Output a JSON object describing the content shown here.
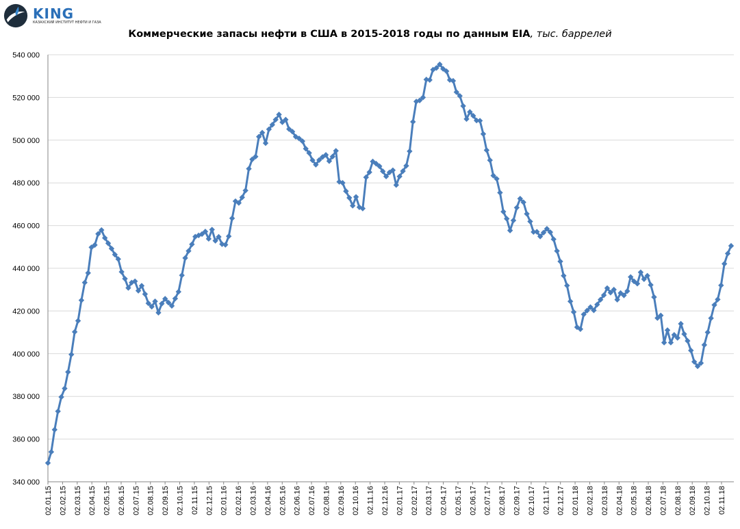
{
  "logo": {
    "name": "KING",
    "subtitle": "КАЗАХСКИЙ ИНСТИТУТ НЕФТИ И ГАЗА",
    "color": "#2a6fb8"
  },
  "chart_data": {
    "type": "line",
    "title": "Коммерческие запасы нефти в США в 2015-2018 годы по данным EIA",
    "title_suffix": ", тыс. баррелей",
    "xlabel": "",
    "ylabel": "",
    "ylim": [
      340000,
      540000
    ],
    "y_ticks": [
      "340 000",
      "360 000",
      "380 000",
      "400 000",
      "420 000",
      "440 000",
      "460 000",
      "480 000",
      "500 000",
      "520 000",
      "540 000"
    ],
    "x_ticks": [
      "02.01.15",
      "02.02.15",
      "02.03.15",
      "02.04.15",
      "02.05.15",
      "02.06.15",
      "02.07.15",
      "02.08.15",
      "02.09.15",
      "02.10.15",
      "02.11.15",
      "02.12.15",
      "02.01.16",
      "02.02.16",
      "02.03.16",
      "02.04.16",
      "02.05.16",
      "02.06.16",
      "02.07.16",
      "02.08.16",
      "02.09.16",
      "02.10.16",
      "02.11.16",
      "02.12.16",
      "02.01.17",
      "02.02.17",
      "02.03.17",
      "02.04.17",
      "02.05.17",
      "02.06.17",
      "02.07.17",
      "02.08.17",
      "02.09.17",
      "02.10.17",
      "02.11.17",
      "02.12.17",
      "02.01.18",
      "02.02.18",
      "02.03.18",
      "02.04.18",
      "02.05.18",
      "02.06.18",
      "02.07.18",
      "02.08.18",
      "02.09.18",
      "02.10.18",
      "02.11.18"
    ],
    "grid": true,
    "series_color": "#4a7ebb",
    "series": [
      {
        "values": [
          348800,
          354000,
          364400,
          373000,
          379700,
          383700,
          391400,
          399600,
          410200,
          415400,
          425000,
          433300,
          437800,
          449800,
          450900,
          456100,
          457900,
          454200,
          451700,
          449200,
          446400,
          444300,
          438300,
          435100,
          430800,
          433300,
          433900,
          429500,
          431800,
          427900,
          423600,
          422000,
          424500,
          419200,
          423400,
          425700,
          423900,
          422400,
          425800,
          429000,
          436700,
          444800,
          448100,
          451200,
          454800,
          455400,
          456000,
          457200,
          453800,
          458100,
          452900,
          454700,
          451300,
          451000,
          455000,
          463400,
          471400,
          470600,
          473200,
          476400,
          486600,
          491000,
          492300,
          501600,
          503500,
          498600,
          505100,
          507200,
          509600,
          512000,
          508400,
          509600,
          505200,
          504000,
          501600,
          500800,
          499500,
          496000,
          494000,
          490600,
          488500,
          490700,
          492100,
          493100,
          490200,
          492300,
          495000,
          480500,
          480000,
          476100,
          473000,
          469300,
          473400,
          468600,
          468000,
          482600,
          485000,
          490000,
          489000,
          487800,
          485400,
          483000,
          484900,
          485900,
          479000,
          483000,
          485500,
          488000,
          494800,
          508600,
          518100,
          518600,
          520000,
          528400,
          528200,
          533000,
          533800,
          535500,
          533400,
          532300,
          528200,
          527800,
          522500,
          520700,
          516000,
          509900,
          513200,
          511400,
          509200,
          509100,
          502900,
          495300,
          490600,
          483400,
          481900,
          475400,
          466500,
          463200,
          457700,
          462400,
          468400,
          472600,
          470900,
          465500,
          461900,
          457000,
          457100,
          454900,
          456700,
          458500,
          456900,
          453600,
          448100,
          443200,
          436500,
          431900,
          424500,
          419500,
          412400,
          411500,
          418400,
          420200,
          421800,
          420300,
          423000,
          425300,
          427400,
          430700,
          428600,
          430000,
          425300,
          428400,
          427300,
          429300,
          435900,
          433900,
          432800,
          438100,
          434900,
          436500,
          432200,
          426500,
          416700,
          417900,
          405200,
          411000,
          405200,
          408800,
          407400,
          414000,
          409200,
          406000,
          401500,
          396200,
          394100,
          395600,
          404100,
          410000,
          416600,
          422800,
          425400,
          432000,
          442100,
          446900,
          450500
        ]
      }
    ]
  }
}
